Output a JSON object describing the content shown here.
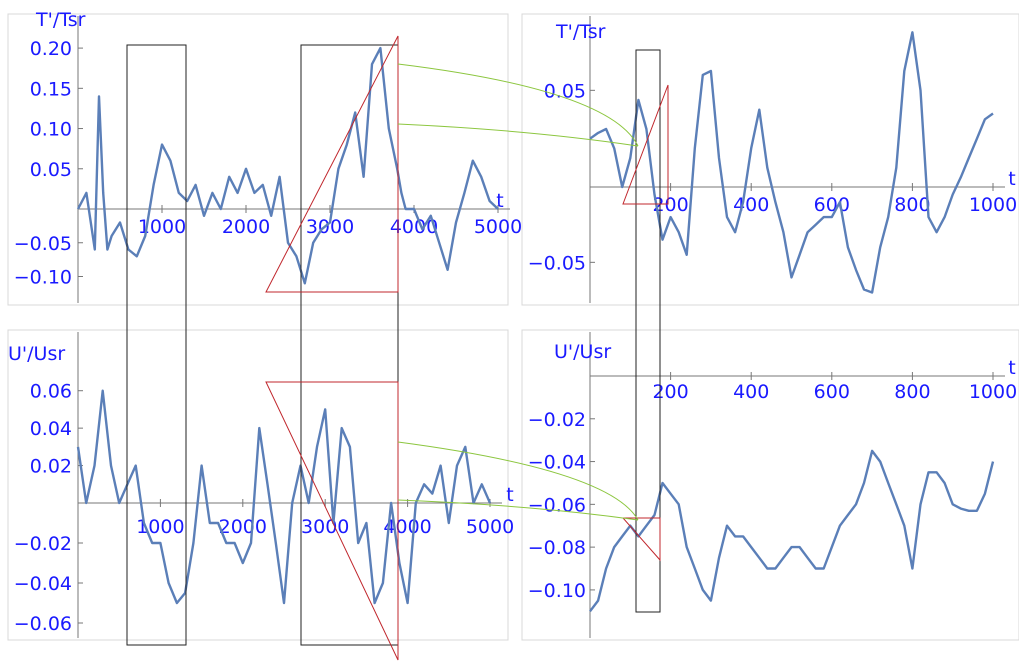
{
  "chart_data": [
    {
      "type": "line",
      "ylabel": "T'/Tsr",
      "xlabel": "t",
      "xlim": [
        0,
        5000
      ],
      "ylim": [
        -0.12,
        0.22
      ],
      "x_ticks": [
        "1000",
        "2000",
        "3000",
        "4000",
        "5000"
      ],
      "y_ticks": [
        "0.20",
        "0.15",
        "0.10",
        "0.05",
        "−0.05",
        "−0.10"
      ],
      "series": [
        {
          "x": [
            0,
            100,
            200,
            250,
            300,
            350,
            400,
            500,
            600,
            700,
            800,
            900,
            1000,
            1100,
            1200,
            1300,
            1400,
            1500,
            1600,
            1700,
            1800,
            1900,
            2000,
            2100,
            2200,
            2300,
            2400,
            2500,
            2600,
            2700,
            2800,
            2900,
            3000,
            3100,
            3200,
            3300,
            3400,
            3500,
            3600,
            3700,
            3800,
            3850,
            3900,
            4000,
            4100,
            4200,
            4300,
            4400,
            4500,
            4600,
            4700,
            4800,
            4900,
            5000
          ],
          "y": [
            0.0,
            0.02,
            -0.06,
            0.14,
            0.02,
            -0.06,
            -0.04,
            -0.02,
            -0.06,
            -0.07,
            -0.04,
            0.03,
            0.08,
            0.06,
            0.02,
            0.01,
            0.03,
            -0.01,
            0.02,
            0.0,
            0.04,
            0.02,
            0.05,
            0.02,
            0.03,
            -0.01,
            0.04,
            -0.05,
            -0.07,
            -0.11,
            -0.05,
            -0.03,
            -0.02,
            0.05,
            0.08,
            0.12,
            0.04,
            0.18,
            0.2,
            0.1,
            0.05,
            0.02,
            0.0,
            0.0,
            -0.03,
            -0.01,
            -0.05,
            -0.09,
            -0.02,
            0.02,
            0.06,
            0.04,
            0.01,
            0.0
          ]
        }
      ]
    },
    {
      "type": "line",
      "ylabel": "T'/Tsr",
      "xlabel": "t",
      "xlim": [
        0,
        1000
      ],
      "ylim": [
        -0.075,
        0.075
      ],
      "x_ticks": [
        "200",
        "400",
        "600",
        "800",
        "1000"
      ],
      "y_ticks": [
        "0.05",
        "−0.05"
      ],
      "series": [
        {
          "x": [
            0,
            20,
            40,
            60,
            80,
            100,
            120,
            140,
            160,
            180,
            200,
            220,
            240,
            260,
            280,
            300,
            320,
            340,
            360,
            380,
            400,
            420,
            440,
            460,
            480,
            500,
            520,
            540,
            560,
            580,
            600,
            620,
            640,
            660,
            680,
            700,
            720,
            740,
            760,
            780,
            800,
            820,
            840,
            860,
            880,
            900,
            920,
            940,
            960,
            980,
            1000
          ],
          "y": [
            0.025,
            0.028,
            0.03,
            0.02,
            0.0,
            0.015,
            0.045,
            0.03,
            -0.005,
            -0.035,
            -0.02,
            -0.03,
            -0.045,
            0.02,
            0.058,
            0.06,
            0.015,
            -0.02,
            -0.03,
            -0.01,
            0.02,
            0.04,
            0.01,
            -0.01,
            -0.03,
            -0.06,
            -0.045,
            -0.03,
            -0.025,
            -0.02,
            -0.02,
            -0.01,
            -0.04,
            -0.055,
            -0.068,
            -0.07,
            -0.04,
            -0.02,
            0.01,
            0.06,
            0.08,
            0.05,
            -0.02,
            -0.03,
            -0.02,
            -0.005,
            0.005,
            0.015,
            0.025,
            0.035,
            0.038
          ]
        }
      ]
    },
    {
      "type": "line",
      "ylabel": "U'/Usr",
      "xlabel": "t",
      "xlim": [
        0,
        5000
      ],
      "ylim": [
        -0.065,
        0.07
      ],
      "x_ticks": [
        "1000",
        "2000",
        "3000",
        "4000",
        "5000"
      ],
      "y_ticks": [
        "0.06",
        "0.04",
        "0.02",
        "−0.02",
        "−0.04",
        "−0.06"
      ],
      "series": [
        {
          "x": [
            0,
            100,
            200,
            300,
            400,
            500,
            600,
            700,
            800,
            900,
            1000,
            1100,
            1200,
            1300,
            1400,
            1500,
            1600,
            1700,
            1800,
            1900,
            2000,
            2100,
            2200,
            2300,
            2400,
            2500,
            2600,
            2700,
            2800,
            2900,
            3000,
            3100,
            3200,
            3300,
            3400,
            3500,
            3600,
            3700,
            3800,
            3900,
            4000,
            4100,
            4200,
            4300,
            4400,
            4500,
            4600,
            4700,
            4800,
            4900,
            5000
          ],
          "y": [
            0.03,
            0.0,
            0.02,
            0.06,
            0.02,
            0.0,
            0.01,
            0.02,
            -0.01,
            -0.02,
            -0.02,
            -0.04,
            -0.05,
            -0.045,
            -0.02,
            0.02,
            -0.01,
            -0.01,
            -0.02,
            -0.02,
            -0.03,
            -0.02,
            0.04,
            0.01,
            -0.02,
            -0.05,
            0.0,
            0.02,
            0.0,
            0.03,
            0.05,
            -0.01,
            0.04,
            0.03,
            -0.02,
            -0.01,
            -0.05,
            -0.04,
            0.0,
            -0.03,
            -0.05,
            0.0,
            0.01,
            0.005,
            0.02,
            -0.01,
            0.02,
            0.03,
            0.0,
            0.01,
            0.0
          ]
        }
      ]
    },
    {
      "type": "line",
      "ylabel": "U'/Usr",
      "xlabel": "t",
      "xlim": [
        0,
        1000
      ],
      "ylim": [
        -0.115,
        0.0
      ],
      "x_ticks": [
        "200",
        "400",
        "600",
        "800",
        "1000"
      ],
      "y_ticks": [
        "−0.02",
        "−0.04",
        "−0.06",
        "−0.08",
        "−0.10"
      ],
      "series": [
        {
          "x": [
            0,
            20,
            40,
            60,
            80,
            100,
            120,
            140,
            160,
            180,
            200,
            220,
            240,
            260,
            280,
            300,
            320,
            340,
            360,
            380,
            400,
            420,
            440,
            460,
            480,
            500,
            520,
            540,
            560,
            580,
            600,
            620,
            640,
            660,
            680,
            700,
            720,
            740,
            760,
            780,
            800,
            820,
            840,
            860,
            880,
            900,
            920,
            940,
            960,
            980,
            1000
          ],
          "y": [
            -0.11,
            -0.105,
            -0.09,
            -0.08,
            -0.075,
            -0.07,
            -0.075,
            -0.07,
            -0.065,
            -0.05,
            -0.055,
            -0.06,
            -0.08,
            -0.09,
            -0.1,
            -0.105,
            -0.085,
            -0.07,
            -0.075,
            -0.075,
            -0.08,
            -0.085,
            -0.09,
            -0.09,
            -0.085,
            -0.08,
            -0.08,
            -0.085,
            -0.09,
            -0.09,
            -0.08,
            -0.07,
            -0.065,
            -0.06,
            -0.05,
            -0.035,
            -0.04,
            -0.05,
            -0.06,
            -0.07,
            -0.09,
            -0.06,
            -0.045,
            -0.045,
            -0.05,
            -0.06,
            -0.062,
            -0.063,
            -0.063,
            -0.055,
            -0.04
          ]
        }
      ]
    }
  ],
  "colors": {
    "series": "#5b7fb8",
    "tick_text": "#1a1aff",
    "box": "#222222",
    "triangle": "#c0272d",
    "arc": "#8cc63f"
  }
}
